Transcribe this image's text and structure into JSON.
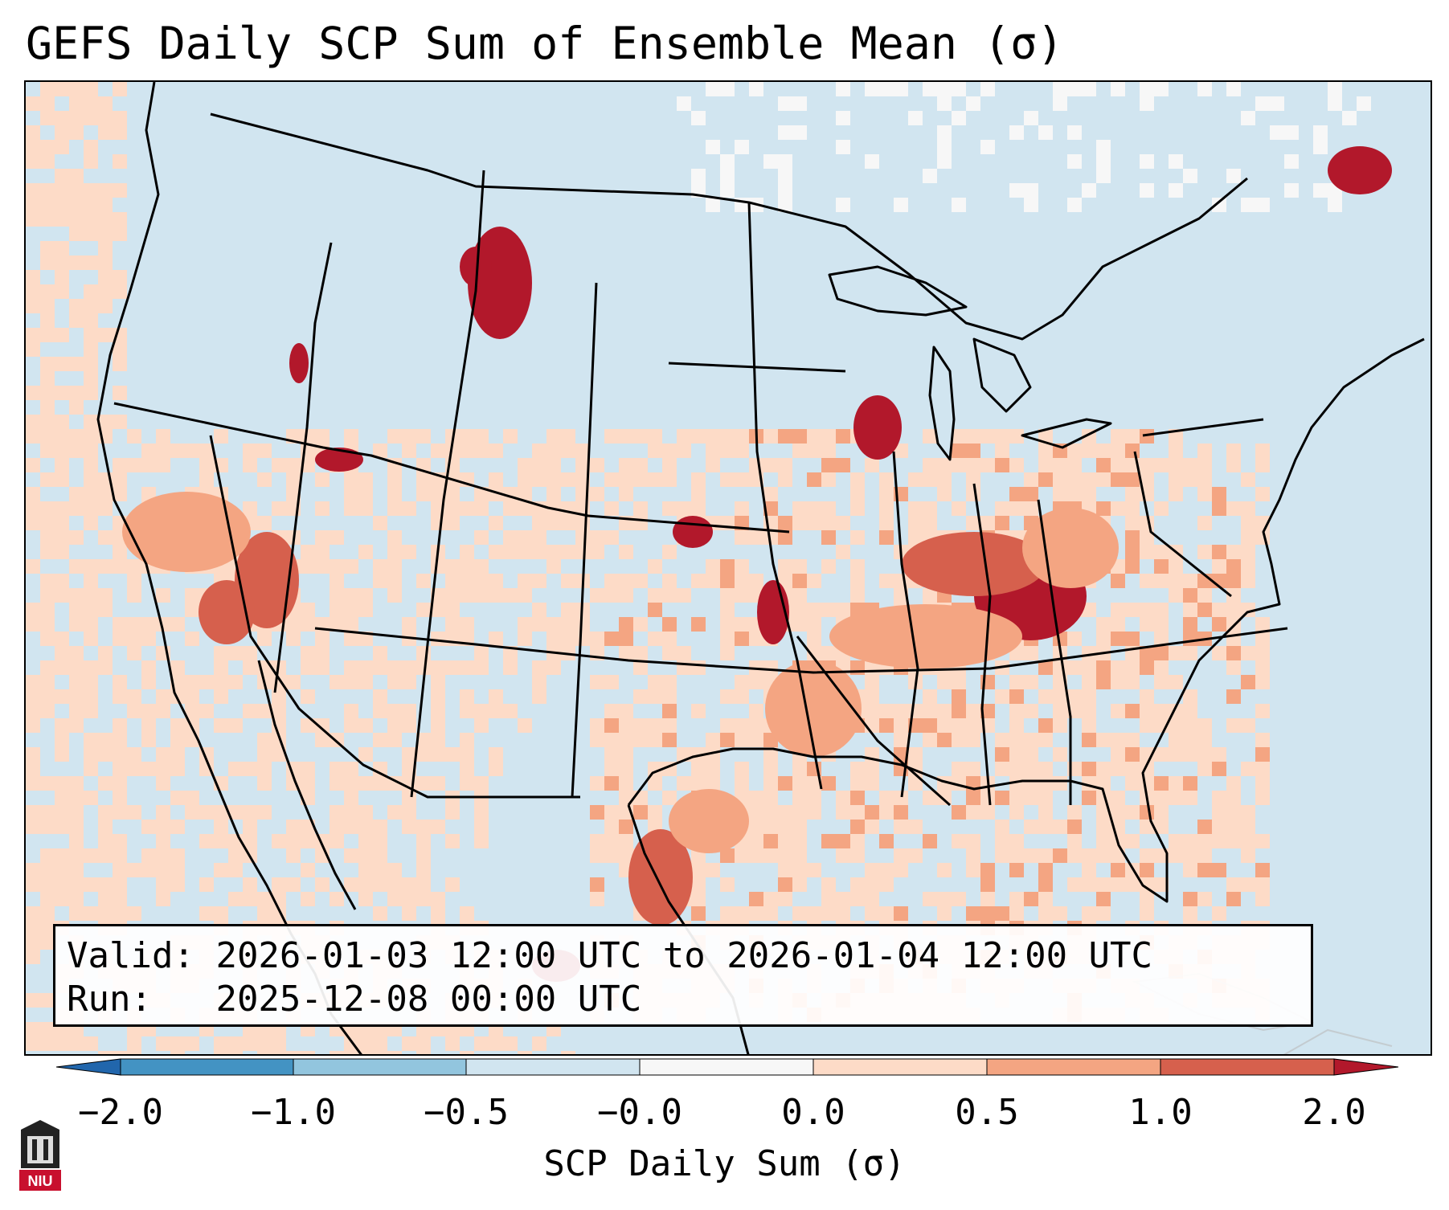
{
  "title": "GEFS Daily SCP Sum of Ensemble Mean (σ)",
  "info": {
    "valid_label": "Valid:",
    "valid_value": "2026-01-03 12:00 UTC to 2026-01-04 12:00 UTC",
    "run_label": "Run:",
    "run_value": "2025-12-08 00:00 UTC"
  },
  "colorbar": {
    "label": "SCP Daily Sum (σ)",
    "ticks": [
      "−2.0",
      "−1.0",
      "−0.5",
      "−0.0",
      "0.0",
      "0.5",
      "1.0",
      "2.0"
    ],
    "colors": [
      "#4393c3",
      "#92c5de",
      "#d1e5f0",
      "#f7f7f7",
      "#fddbc7",
      "#f4a582",
      "#d6604d",
      "#b2182b"
    ]
  },
  "logo": {
    "name": "NIU"
  }
}
